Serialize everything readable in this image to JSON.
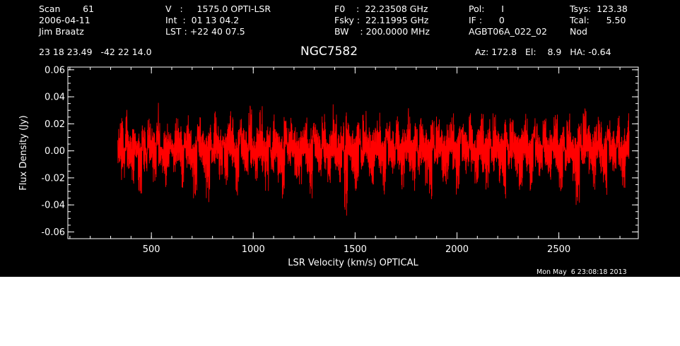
{
  "header": {
    "col1": [
      "Scan        61",
      "2006-04-11",
      "Jim Braatz"
    ],
    "col2": [
      "V   :     1575.0 OPTI-LSR",
      "Int  :  01 13 04.2",
      "LST : +22 40 07.5"
    ],
    "col3": [
      "F0    :  22.23508 GHz",
      "Fsky :  22.11995 GHz",
      "BW    : 200.0000 MHz"
    ],
    "col4": [
      "Pol:      I",
      "IF :      0",
      "AGBT06A_022_02"
    ],
    "col5": [
      "Tsys:  123.38",
      "Tcal:      5.50",
      "Nod"
    ],
    "coords": "23 18 23.49   -42 22 14.0",
    "source": "NGC7582",
    "azel": "Az: 172.8   El:    8.9   HA: -0.64"
  },
  "timestamp": "Mon May  6 23:08:18 2013",
  "colors": {
    "background": "#000000",
    "axes": "#ffffff",
    "trace": "#ff0000"
  },
  "chart_data": {
    "type": "line",
    "title": "NGC7582",
    "xlabel": "LSR Velocity (km/s) OPTICAL",
    "ylabel": "Flux Density (Jy)",
    "xlim": [
      90,
      2890
    ],
    "ylim": [
      -0.065,
      0.062
    ],
    "xticks": [
      500,
      1000,
      1500,
      2000,
      2500
    ],
    "xtick_labels": [
      "500",
      "1000",
      "1500",
      "2000",
      "2500"
    ],
    "yticks": [
      -0.06,
      -0.04,
      -0.02,
      0.0,
      0.02,
      0.04,
      0.06
    ],
    "ytick_labels": [
      "-0.06",
      "-0.04",
      "-0.02",
      "0.00",
      "0.02",
      "0.04",
      "0.06"
    ],
    "x_minor_step": 100,
    "y_minor_step": 0.005,
    "series": [
      {
        "x_start": 335,
        "x_end": 2845,
        "values": [
          0.014,
          -0.006,
          0.021,
          -0.018,
          0.003,
          0.027,
          -0.012,
          0.009,
          -0.022,
          0.016,
          -0.004,
          0.011,
          -0.029,
          0.006,
          0.019,
          -0.015,
          0.001,
          0.024,
          -0.009,
          0.013,
          -0.02,
          0.007,
          0.032,
          -0.011,
          0.004,
          -0.017,
          0.012,
          -0.027,
          0.018,
          -0.003,
          0.008,
          -0.013,
          0.022,
          -0.007,
          0.015,
          -0.024,
          0.002,
          0.017,
          -0.01,
          0.026,
          -0.016,
          0.005,
          -0.031,
          0.011,
          0.023,
          -0.008,
          0.014,
          -0.019,
          0.009,
          -0.036,
          0.02,
          0.003,
          -0.012,
          0.028,
          -0.005,
          0.016,
          -0.021,
          0.007,
          0.012,
          -0.026,
          0.019,
          -0.002,
          0.025,
          -0.014,
          0.006,
          -0.033,
          0.013,
          0.021,
          -0.009,
          0.017,
          -0.018,
          0.004,
          0.029,
          -0.012,
          0.008,
          -0.023,
          0.015,
          -0.006,
          0.031,
          -0.016,
          0.01,
          -0.028,
          0.018,
          0.002,
          -0.013,
          0.024,
          -0.007,
          0.014,
          -0.021,
          0.009,
          -0.035,
          0.022,
          0.005,
          -0.011,
          0.027,
          -0.004,
          0.016,
          -0.019,
          0.011,
          -0.025,
          0.018,
          -0.003,
          0.023,
          -0.015,
          0.007,
          -0.031,
          0.014,
          0.02,
          -0.008,
          0.016,
          -0.017,
          0.005,
          0.026,
          -0.013,
          0.009,
          -0.024,
          0.017,
          -0.006,
          0.03,
          -0.015,
          0.011,
          -0.027,
          0.019,
          0.003,
          -0.047,
          0.025,
          -0.008,
          0.013,
          -0.02,
          0.01,
          -0.032,
          0.021,
          0.006,
          -0.012,
          0.028,
          -0.003,
          0.015,
          -0.018,
          0.012,
          -0.026,
          0.019,
          -0.004,
          0.024,
          -0.016,
          0.008,
          -0.029,
          0.014,
          0.02,
          -0.009,
          0.017,
          -0.018,
          0.004,
          0.027,
          -0.012,
          0.009,
          -0.025,
          0.016,
          -0.005,
          0.033,
          -0.014,
          0.01,
          -0.028,
          0.018,
          0.002,
          -0.014,
          0.023,
          -0.007,
          0.015,
          -0.022,
          0.009,
          -0.034,
          0.021,
          0.004,
          -0.011,
          0.029,
          -0.004,
          0.016,
          -0.019,
          0.011,
          -0.026,
          0.018,
          -0.002,
          0.024,
          -0.015,
          0.007,
          -0.03,
          0.013,
          0.021,
          -0.009,
          0.016,
          -0.017,
          0.005,
          0.026,
          -0.013,
          0.009,
          -0.023,
          0.017,
          -0.006,
          0.031,
          -0.016,
          0.01,
          -0.027,
          0.02,
          0.003,
          -0.012,
          0.025,
          -0.008,
          0.014,
          -0.021,
          0.01,
          -0.033,
          0.022,
          0.006,
          -0.011,
          0.027,
          -0.003,
          0.015,
          -0.018,
          0.012,
          -0.025,
          0.019,
          -0.005,
          0.024,
          -0.016,
          0.008,
          -0.029,
          0.014,
          0.02,
          -0.009,
          0.017,
          -0.019,
          0.004,
          0.026,
          -0.012,
          0.009,
          -0.024,
          0.016,
          -0.006,
          0.03,
          -0.015,
          0.011,
          -0.028,
          0.018,
          0.002,
          -0.013,
          0.024,
          -0.007,
          0.014,
          -0.02,
          0.009,
          -0.039,
          0.022,
          0.005,
          -0.011,
          0.028,
          -0.004,
          0.016,
          -0.018,
          0.011,
          -0.026,
          0.019,
          -0.003,
          0.023,
          -0.015,
          0.007,
          -0.031,
          0.014,
          0.021,
          -0.008,
          0.016,
          -0.017,
          0.005,
          0.027,
          -0.013,
          0.009,
          -0.024,
          0.017,
          -0.006,
          0.028
        ]
      }
    ]
  }
}
